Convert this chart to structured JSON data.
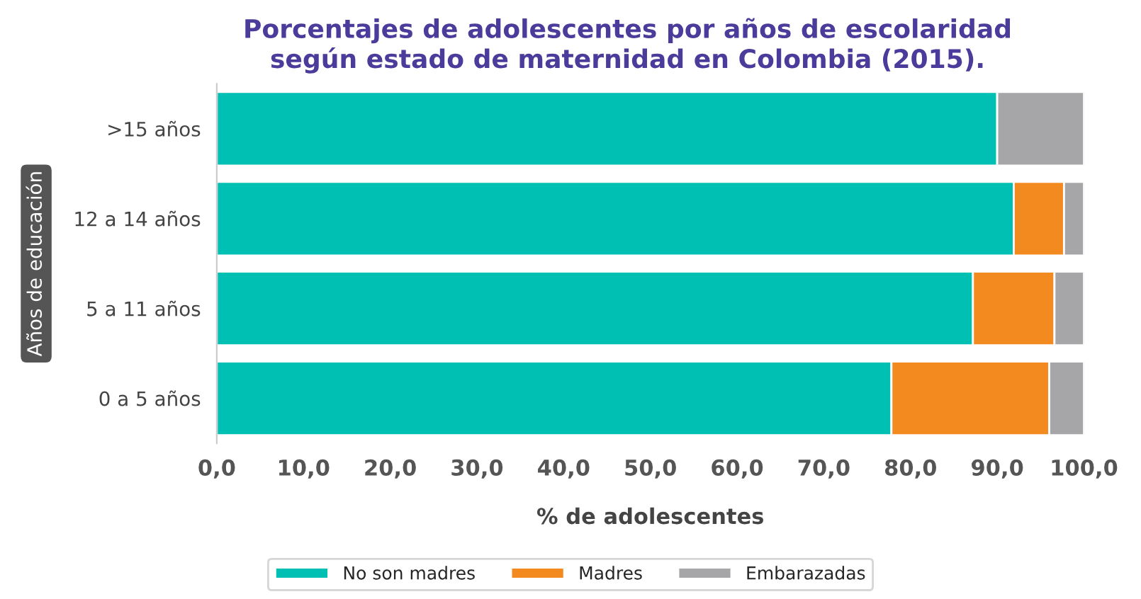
{
  "chart_data": {
    "type": "bar",
    "orientation": "horizontal",
    "stacked": true,
    "title": "Porcentajes de adolescentes por años de escolaridad\nsegún estado de maternidad en Colombia (2015).",
    "xlabel": "% de adolescentes",
    "ylabel": "Años de educación",
    "categories": [
      ">15 años",
      "12 a 14 años",
      "5 a 11 años",
      "0 a 5 años"
    ],
    "series": [
      {
        "name": "No son madres",
        "color": "#00bfb3",
        "values": [
          90.0,
          91.9,
          87.2,
          77.8
        ]
      },
      {
        "name": "Madres",
        "color": "#f28a20",
        "values": [
          0.0,
          5.8,
          9.4,
          18.2
        ]
      },
      {
        "name": "Embarazadas",
        "color": "#a6a6a8",
        "values": [
          10.0,
          2.3,
          3.4,
          4.0
        ]
      }
    ],
    "xlim": [
      0,
      100
    ],
    "xticks": [
      {
        "value": 0,
        "label": "0,0"
      },
      {
        "value": 10,
        "label": "10,0"
      },
      {
        "value": 20,
        "label": "20,0"
      },
      {
        "value": 30,
        "label": "30,0"
      },
      {
        "value": 40,
        "label": "40,0"
      },
      {
        "value": 50,
        "label": "50,0"
      },
      {
        "value": 60,
        "label": "60,0"
      },
      {
        "value": 70,
        "label": "70,0"
      },
      {
        "value": 80,
        "label": "80,0"
      },
      {
        "value": 90,
        "label": "90,0"
      },
      {
        "value": 100,
        "label": "100,0"
      }
    ],
    "legend": "bottom",
    "grid": false
  }
}
